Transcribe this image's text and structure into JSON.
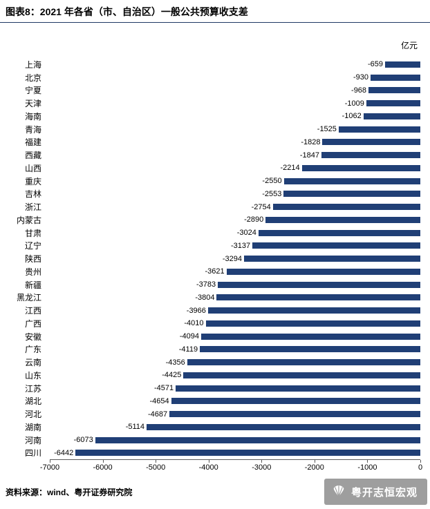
{
  "header": {
    "title": "图表8：2021 年各省（市、自治区）一般公共预算收支差"
  },
  "chart_data": {
    "type": "bar",
    "orientation": "horizontal",
    "title": "2021 年各省（市、自治区）一般公共预算收支差",
    "unit_label": "亿元",
    "categories": [
      "上海",
      "北京",
      "宁夏",
      "天津",
      "海南",
      "青海",
      "福建",
      "西藏",
      "山西",
      "重庆",
      "吉林",
      "浙江",
      "内蒙古",
      "甘肃",
      "辽宁",
      "陕西",
      "贵州",
      "新疆",
      "黑龙江",
      "江西",
      "广西",
      "安徽",
      "广东",
      "云南",
      "山东",
      "江苏",
      "湖北",
      "河北",
      "湖南",
      "河南",
      "四川"
    ],
    "values": [
      -659,
      -930,
      -968,
      -1009,
      -1062,
      -1525,
      -1828,
      -1847,
      -2214,
      -2550,
      -2553,
      -2754,
      -2890,
      -3024,
      -3137,
      -3294,
      -3621,
      -3783,
      -3804,
      -3966,
      -4010,
      -4094,
      -4119,
      -4356,
      -4425,
      -4571,
      -4654,
      -4687,
      -5114,
      -6073,
      -6442
    ],
    "xlim": [
      -7000,
      0
    ],
    "x_ticks": [
      -7000,
      -6000,
      -5000,
      -4000,
      -3000,
      -2000,
      -1000,
      0
    ],
    "bar_color": "#203F76",
    "grid": false,
    "value_labels": true,
    "legend": "none"
  },
  "footer": {
    "source": "资料来源：wind、粤开证券研究院",
    "watermark": "粤开志恒宏观"
  },
  "colors": {
    "header_rule": "#1F3864",
    "axis_line": "#595959",
    "watermark_bg": "#9e9e9e"
  }
}
